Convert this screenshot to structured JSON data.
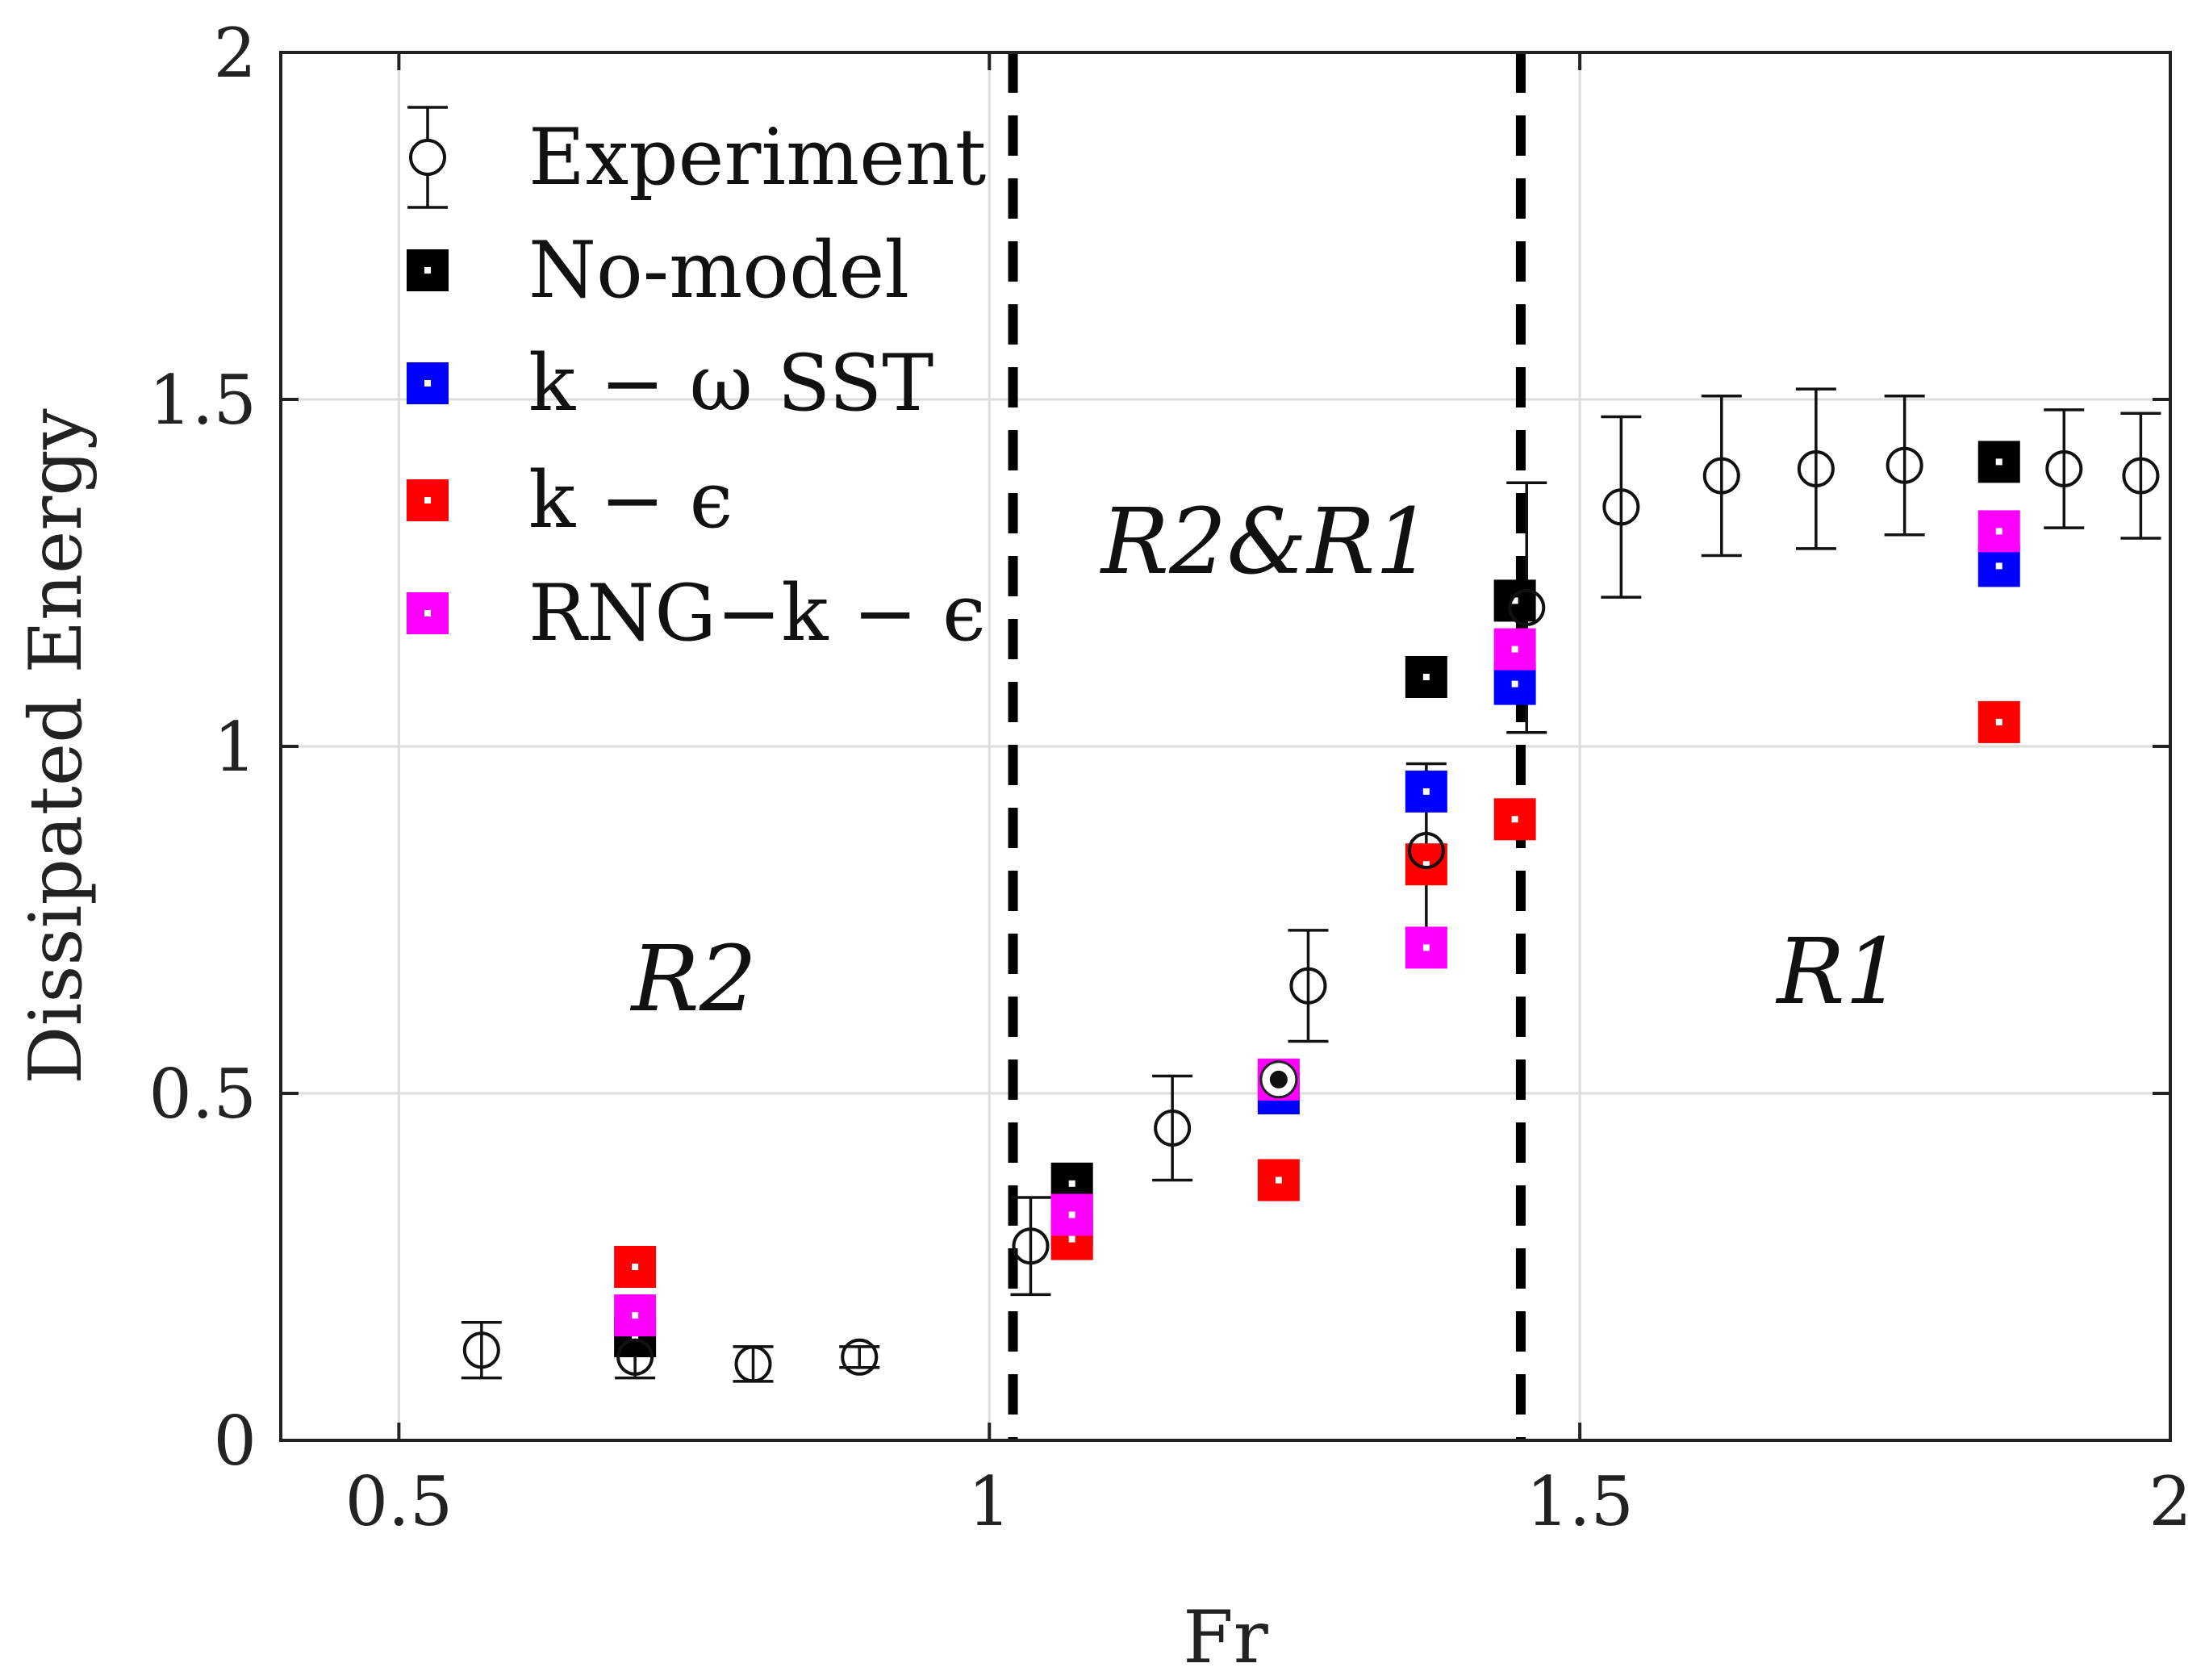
{
  "chart_data": {
    "type": "scatter",
    "xlabel": "Fr",
    "ylabel": "Dissipated Energy",
    "xlim": [
      0.4,
      2.0
    ],
    "ylim": [
      0,
      2
    ],
    "xticks": [
      0.5,
      1,
      1.5,
      2
    ],
    "xtick_labels": [
      "0.5",
      "1",
      "1.5",
      "2"
    ],
    "yticks": [
      0,
      0.5,
      1,
      1.5,
      2
    ],
    "ytick_labels": [
      "0",
      "0.5",
      "1",
      "1.5",
      "2"
    ],
    "grid": true,
    "legend_position": "top-left",
    "vlines": [
      1.02,
      1.45
    ],
    "regions": [
      {
        "label": "R2",
        "x": 0.75,
        "y": 0.62
      },
      {
        "label": "R2&R1",
        "x": 1.235,
        "y": 1.25
      },
      {
        "label": "R1",
        "x": 1.72,
        "y": 0.63
      }
    ],
    "experiment": {
      "name": "Experiment",
      "points": [
        {
          "x": 0.57,
          "y": 0.13,
          "err": 0.04
        },
        {
          "x": 0.7,
          "y": 0.12,
          "err": 0.03
        },
        {
          "x": 0.8,
          "y": 0.11,
          "err": 0.025
        },
        {
          "x": 0.89,
          "y": 0.12,
          "err": 0.015
        },
        {
          "x": 1.035,
          "y": 0.28,
          "err": 0.07
        },
        {
          "x": 1.155,
          "y": 0.45,
          "err": 0.075
        },
        {
          "x": 1.27,
          "y": 0.655,
          "err": 0.08
        },
        {
          "x": 1.37,
          "y": 0.85,
          "err": 0.125
        },
        {
          "x": 1.455,
          "y": 1.2,
          "err": 0.18
        },
        {
          "x": 1.535,
          "y": 1.345,
          "err": 0.13
        },
        {
          "x": 1.62,
          "y": 1.39,
          "err": 0.115
        },
        {
          "x": 1.7,
          "y": 1.4,
          "err": 0.115
        },
        {
          "x": 1.775,
          "y": 1.405,
          "err": 0.1
        },
        {
          "x": 1.91,
          "y": 1.4,
          "err": 0.085
        },
        {
          "x": 1.975,
          "y": 1.39,
          "err": 0.09
        }
      ]
    },
    "series": [
      {
        "name": "No-model",
        "color": "#000000",
        "x": [
          0.7,
          1.07,
          1.37,
          1.445,
          1.855
        ],
        "y": [
          0.15,
          0.37,
          1.1,
          1.21,
          1.41
        ]
      },
      {
        "name": "k − ω SST",
        "color": "#0000ff",
        "x": [
          1.07,
          1.245,
          1.37,
          1.445,
          1.855
        ],
        "y": [
          0.31,
          0.5,
          0.935,
          1.09,
          1.26
        ]
      },
      {
        "name": "k − ϵ",
        "color": "#ff0000",
        "x": [
          0.7,
          1.07,
          1.245,
          1.37,
          1.445,
          1.855
        ],
        "y": [
          0.25,
          0.29,
          0.375,
          0.83,
          0.895,
          1.035
        ]
      },
      {
        "name": "RNG−k − ϵ",
        "color": "#ff00ff",
        "x": [
          0.7,
          1.07,
          1.245,
          1.37,
          1.445,
          1.855
        ],
        "y": [
          0.18,
          0.325,
          0.52,
          0.71,
          1.14,
          1.31
        ]
      }
    ],
    "highlight_point": {
      "x": 1.245,
      "y": 0.52
    }
  }
}
